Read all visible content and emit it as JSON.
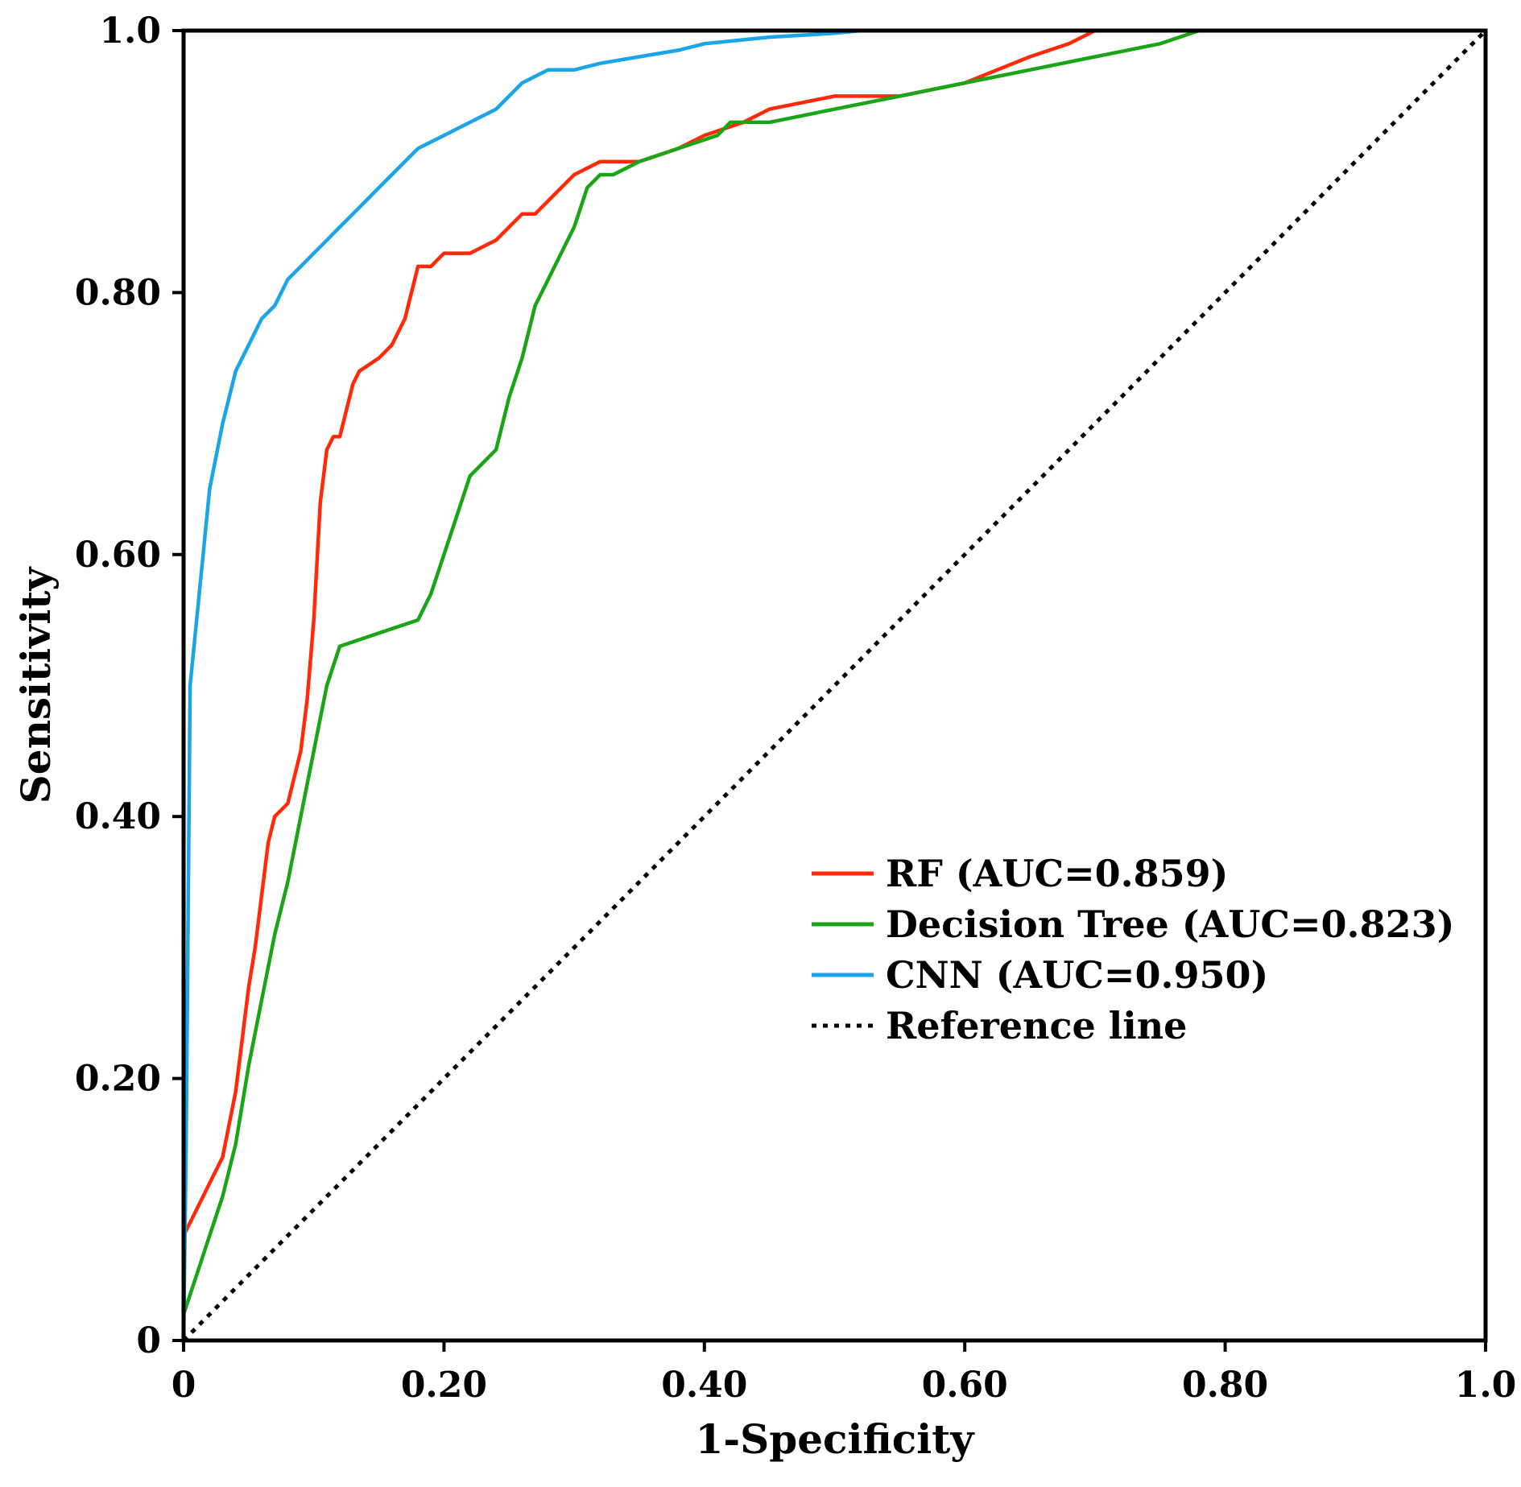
{
  "chart_data": {
    "type": "line",
    "title": "",
    "xlabel": "1-Specificity",
    "ylabel": "Sensitivity",
    "xlim": [
      0,
      1.0
    ],
    "ylim": [
      0,
      1.0
    ],
    "grid": false,
    "legend_position": "center-right",
    "x_ticks": [
      {
        "value": 0,
        "label": "0"
      },
      {
        "value": 0.2,
        "label": "0.20"
      },
      {
        "value": 0.4,
        "label": "0.40"
      },
      {
        "value": 0.6,
        "label": "0.60"
      },
      {
        "value": 0.8,
        "label": "0.80"
      },
      {
        "value": 1.0,
        "label": "1.0"
      }
    ],
    "y_ticks": [
      {
        "value": 0,
        "label": "0"
      },
      {
        "value": 0.2,
        "label": "0.20"
      },
      {
        "value": 0.4,
        "label": "0.40"
      },
      {
        "value": 0.6,
        "label": "0.60"
      },
      {
        "value": 0.8,
        "label": "0.80"
      },
      {
        "value": 1.0,
        "label": "1.0"
      }
    ],
    "series": [
      {
        "name": "RF (AUC=0.859)",
        "color": "#ff2a0a",
        "dash": "solid",
        "x": [
          0.0,
          0.01,
          0.02,
          0.03,
          0.04,
          0.045,
          0.05,
          0.055,
          0.06,
          0.065,
          0.07,
          0.08,
          0.09,
          0.095,
          0.1,
          0.105,
          0.11,
          0.115,
          0.12,
          0.13,
          0.135,
          0.15,
          0.16,
          0.17,
          0.18,
          0.19,
          0.2,
          0.22,
          0.24,
          0.25,
          0.26,
          0.27,
          0.28,
          0.3,
          0.32,
          0.35,
          0.38,
          0.4,
          0.43,
          0.45,
          0.5,
          0.55,
          0.6,
          0.65,
          0.68,
          0.7
        ],
        "y": [
          0.08,
          0.1,
          0.12,
          0.14,
          0.19,
          0.23,
          0.27,
          0.3,
          0.34,
          0.38,
          0.4,
          0.41,
          0.45,
          0.49,
          0.55,
          0.64,
          0.68,
          0.69,
          0.69,
          0.73,
          0.74,
          0.75,
          0.76,
          0.78,
          0.82,
          0.82,
          0.83,
          0.83,
          0.84,
          0.85,
          0.86,
          0.86,
          0.87,
          0.89,
          0.9,
          0.9,
          0.91,
          0.92,
          0.93,
          0.94,
          0.95,
          0.95,
          0.96,
          0.98,
          0.99,
          1.0
        ]
      },
      {
        "name": "Decision Tree (AUC=0.823)",
        "color": "#19a515",
        "dash": "solid",
        "x": [
          0.0,
          0.01,
          0.02,
          0.03,
          0.04,
          0.05,
          0.06,
          0.07,
          0.08,
          0.09,
          0.1,
          0.11,
          0.12,
          0.15,
          0.18,
          0.19,
          0.2,
          0.21,
          0.22,
          0.24,
          0.25,
          0.26,
          0.27,
          0.28,
          0.29,
          0.3,
          0.31,
          0.32,
          0.33,
          0.35,
          0.38,
          0.41,
          0.42,
          0.45,
          0.5,
          0.55,
          0.6,
          0.65,
          0.7,
          0.75,
          0.78
        ],
        "y": [
          0.02,
          0.05,
          0.08,
          0.11,
          0.15,
          0.21,
          0.26,
          0.31,
          0.35,
          0.4,
          0.45,
          0.5,
          0.53,
          0.54,
          0.55,
          0.57,
          0.6,
          0.63,
          0.66,
          0.68,
          0.72,
          0.75,
          0.79,
          0.81,
          0.83,
          0.85,
          0.88,
          0.89,
          0.89,
          0.9,
          0.91,
          0.92,
          0.93,
          0.93,
          0.94,
          0.95,
          0.96,
          0.97,
          0.98,
          0.99,
          1.0
        ]
      },
      {
        "name": "CNN (AUC=0.950)",
        "color": "#19a5e8",
        "dash": "solid",
        "x": [
          0.0,
          0.002,
          0.005,
          0.01,
          0.015,
          0.02,
          0.03,
          0.04,
          0.05,
          0.06,
          0.07,
          0.08,
          0.09,
          0.1,
          0.11,
          0.12,
          0.13,
          0.14,
          0.15,
          0.16,
          0.17,
          0.18,
          0.2,
          0.22,
          0.24,
          0.25,
          0.26,
          0.27,
          0.28,
          0.3,
          0.32,
          0.35,
          0.38,
          0.4,
          0.45,
          0.5,
          0.52
        ],
        "y": [
          0.0,
          0.15,
          0.5,
          0.55,
          0.6,
          0.65,
          0.7,
          0.74,
          0.76,
          0.78,
          0.79,
          0.81,
          0.82,
          0.83,
          0.84,
          0.85,
          0.86,
          0.87,
          0.88,
          0.89,
          0.9,
          0.91,
          0.92,
          0.93,
          0.94,
          0.95,
          0.96,
          0.965,
          0.97,
          0.97,
          0.975,
          0.98,
          0.985,
          0.99,
          0.995,
          0.998,
          1.0
        ]
      },
      {
        "name": "Reference line",
        "color": "#000000",
        "dash": "dotted",
        "x": [
          0,
          1.0
        ],
        "y": [
          0,
          1.0
        ]
      }
    ]
  }
}
